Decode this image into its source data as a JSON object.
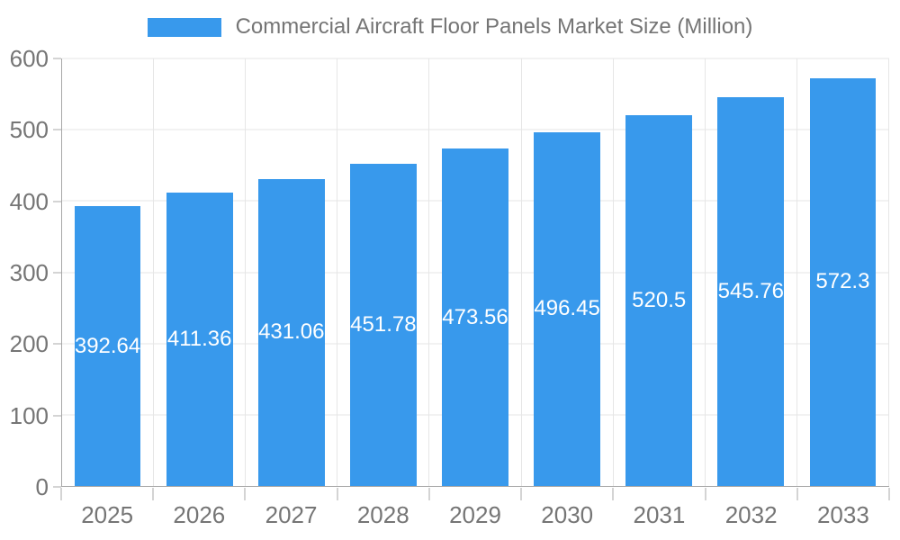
{
  "legend": {
    "label": "Commercial Aircraft Floor Panels Market Size (Million)"
  },
  "chart_data": {
    "type": "bar",
    "title": "Commercial Aircraft Floor Panels Market Size (Million)",
    "categories": [
      "2025",
      "2026",
      "2027",
      "2028",
      "2029",
      "2030",
      "2031",
      "2032",
      "2033"
    ],
    "values": [
      392.64,
      411.36,
      431.06,
      451.78,
      473.56,
      496.45,
      520.5,
      545.76,
      572.3
    ],
    "xlabel": "",
    "ylabel": "",
    "ylim": [
      0,
      600
    ],
    "yticks": [
      0,
      100,
      200,
      300,
      400,
      500,
      600
    ],
    "grid": true,
    "legend_position": "top",
    "bar_color": "#3899ec",
    "bar_label_color": "#ffffff",
    "grid_color": "#e6e6e6",
    "axis_color": "#a8a8a8",
    "text_color": "#757575"
  }
}
